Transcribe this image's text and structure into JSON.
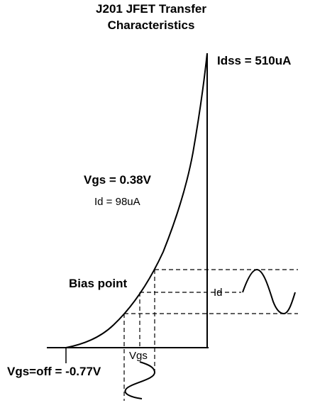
{
  "title_line1": "J201 JFET Transfer",
  "title_line2": "Characteristics",
  "idss_label": "Idss = 510uA",
  "vgs_label": "Vgs = 0.38V",
  "id_value_label": "Id = 98uA",
  "bias_point_label": "Bias point",
  "id_axis_label": "Id",
  "vgs_axis_label": "Vgs",
  "vgs_off_label": "Vgs=off = -0.77V"
}
